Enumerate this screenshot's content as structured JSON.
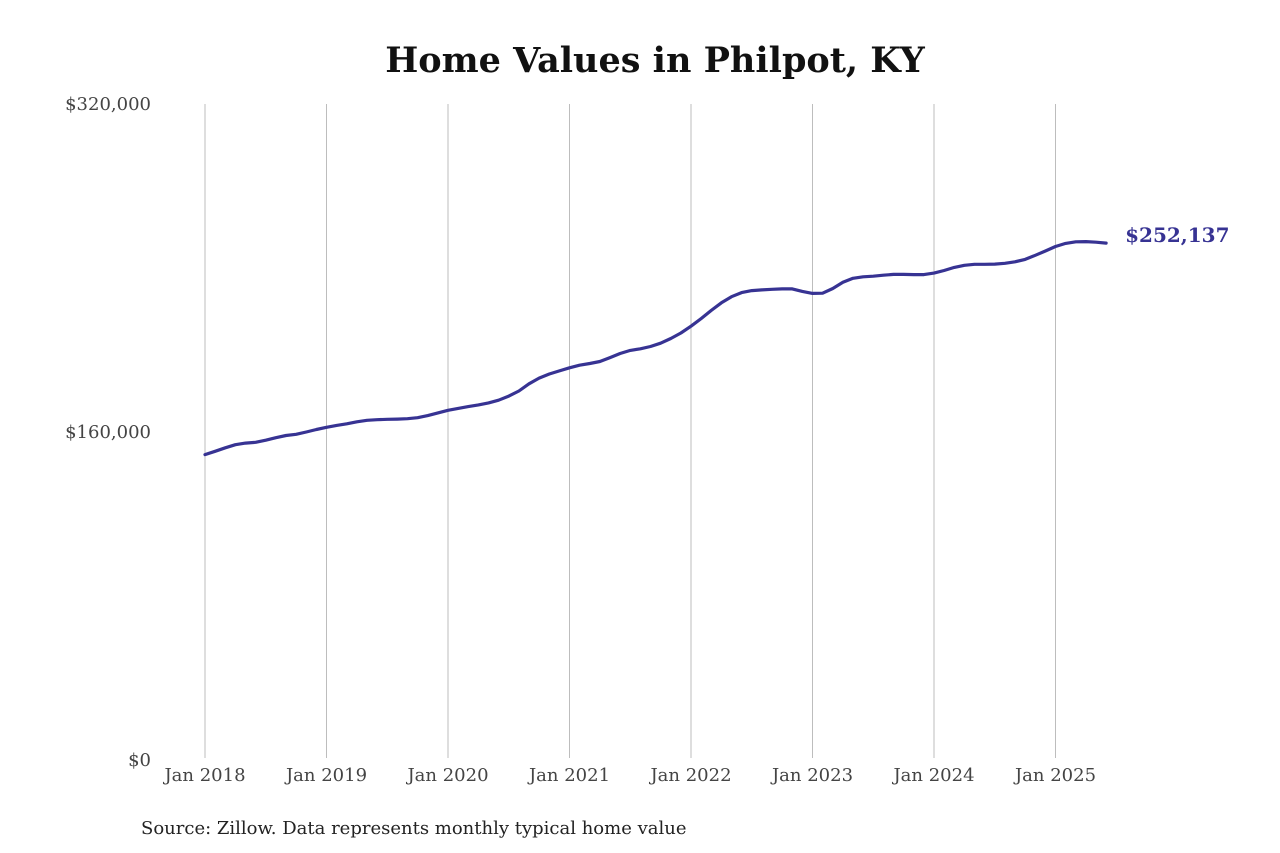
{
  "chart_data": {
    "type": "line",
    "title": "Home Values in Philpot, KY",
    "source": "Source: Zillow. Data represents monthly typical home value",
    "xlabel": "",
    "ylabel": "",
    "x_ticks": [
      "Jan 2018",
      "Jan 2019",
      "Jan 2020",
      "Jan 2021",
      "Jan 2022",
      "Jan 2023",
      "Jan 2024",
      "Jan 2025"
    ],
    "y_ticks": [
      "$320,000",
      "$160,000",
      "$0"
    ],
    "ylim": [
      0,
      320000
    ],
    "xlim": [
      "2018-01",
      "2025-06"
    ],
    "grid": "vertical",
    "line_color": "#373393",
    "end_label": "$252,137",
    "series": [
      {
        "values": [
          [
            "2018-01",
            149000
          ],
          [
            "2018-02",
            150600
          ],
          [
            "2018-03",
            152300
          ],
          [
            "2018-04",
            153800
          ],
          [
            "2018-05",
            154600
          ],
          [
            "2018-06",
            155000
          ],
          [
            "2018-07",
            156000
          ],
          [
            "2018-08",
            157200
          ],
          [
            "2018-09",
            158300
          ],
          [
            "2018-10",
            158900
          ],
          [
            "2018-11",
            160000
          ],
          [
            "2018-12",
            161200
          ],
          [
            "2019-01",
            162300
          ],
          [
            "2019-02",
            163200
          ],
          [
            "2019-03",
            164000
          ],
          [
            "2019-04",
            165000
          ],
          [
            "2019-05",
            165700
          ],
          [
            "2019-06",
            166000
          ],
          [
            "2019-07",
            166200
          ],
          [
            "2019-08",
            166300
          ],
          [
            "2019-09",
            166500
          ],
          [
            "2019-10",
            167000
          ],
          [
            "2019-11",
            168000
          ],
          [
            "2019-12",
            169300
          ],
          [
            "2020-01",
            170600
          ],
          [
            "2020-02",
            171500
          ],
          [
            "2020-03",
            172400
          ],
          [
            "2020-04",
            173200
          ],
          [
            "2020-05",
            174200
          ],
          [
            "2020-06",
            175500
          ],
          [
            "2020-07",
            177500
          ],
          [
            "2020-08",
            180000
          ],
          [
            "2020-09",
            183500
          ],
          [
            "2020-10",
            186300
          ],
          [
            "2020-11",
            188300
          ],
          [
            "2020-12",
            189800
          ],
          [
            "2021-01",
            191300
          ],
          [
            "2021-02",
            192600
          ],
          [
            "2021-03",
            193400
          ],
          [
            "2021-04",
            194400
          ],
          [
            "2021-05",
            196300
          ],
          [
            "2021-06",
            198300
          ],
          [
            "2021-07",
            199800
          ],
          [
            "2021-08",
            200600
          ],
          [
            "2021-09",
            201700
          ],
          [
            "2021-10",
            203300
          ],
          [
            "2021-11",
            205600
          ],
          [
            "2021-12",
            208300
          ],
          [
            "2022-01",
            211600
          ],
          [
            "2022-02",
            215300
          ],
          [
            "2022-03",
            219300
          ],
          [
            "2022-04",
            223000
          ],
          [
            "2022-05",
            226000
          ],
          [
            "2022-06",
            228000
          ],
          [
            "2022-07",
            229000
          ],
          [
            "2022-08",
            229300
          ],
          [
            "2022-09",
            229600
          ],
          [
            "2022-10",
            229800
          ],
          [
            "2022-11",
            229800
          ],
          [
            "2022-12",
            228600
          ],
          [
            "2023-01",
            227600
          ],
          [
            "2023-02",
            227700
          ],
          [
            "2023-03",
            230000
          ],
          [
            "2023-04",
            233000
          ],
          [
            "2023-05",
            235000
          ],
          [
            "2023-06",
            235700
          ],
          [
            "2023-07",
            236000
          ],
          [
            "2023-08",
            236500
          ],
          [
            "2023-09",
            236900
          ],
          [
            "2023-10",
            236900
          ],
          [
            "2023-11",
            236800
          ],
          [
            "2023-12",
            236800
          ],
          [
            "2024-01",
            237500
          ],
          [
            "2024-02",
            238800
          ],
          [
            "2024-03",
            240300
          ],
          [
            "2024-04",
            241300
          ],
          [
            "2024-05",
            241800
          ],
          [
            "2024-06",
            241800
          ],
          [
            "2024-07",
            241900
          ],
          [
            "2024-08",
            242300
          ],
          [
            "2024-09",
            243000
          ],
          [
            "2024-10",
            244200
          ],
          [
            "2024-11",
            246200
          ],
          [
            "2024-12",
            248300
          ],
          [
            "2025-01",
            250500
          ],
          [
            "2025-02",
            252000
          ],
          [
            "2025-03",
            252800
          ],
          [
            "2025-04",
            252900
          ],
          [
            "2025-05",
            252600
          ],
          [
            "2025-06",
            252137
          ]
        ]
      }
    ]
  }
}
